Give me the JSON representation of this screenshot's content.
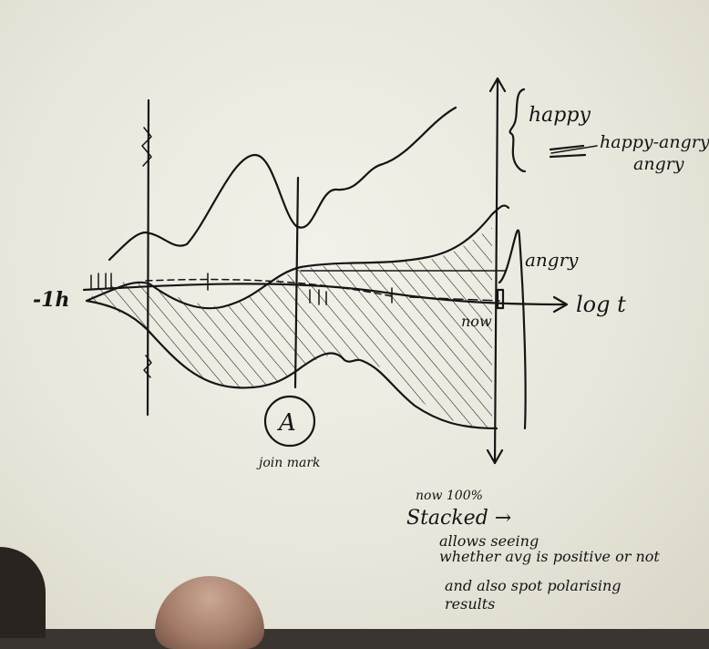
{
  "labels": {
    "happy": "happy",
    "happy_angry": "happy-angry",
    "happy_angry_line2": "angry",
    "angry": "angry",
    "axis_left": "-1h",
    "axis_right": "log t",
    "now": "now",
    "marker": "A",
    "marker_caption": "join mark",
    "notes": [
      "now 100%",
      "Stacked →",
      "allows seeing",
      "whether avg is positive or not",
      "and also spot polarising",
      "results"
    ]
  },
  "colors": {
    "ink": "#151515",
    "paper": "#efeee6"
  }
}
